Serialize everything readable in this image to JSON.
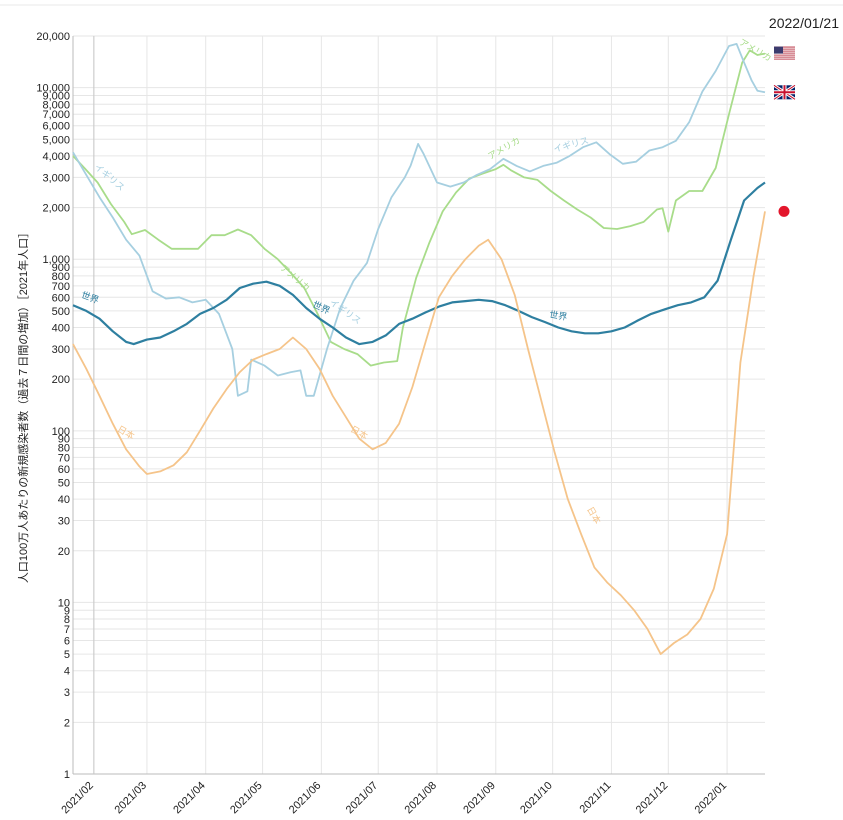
{
  "date_label": "2022/01/21",
  "chart_data": {
    "type": "line",
    "ylabel": "人口100万人あたりの新規感染者数（過去７日間の増加）［2021年人口］",
    "y_scale": "log",
    "ylim": [
      1,
      20000
    ],
    "y_ticks": [
      1,
      2,
      3,
      4,
      5,
      6,
      7,
      8,
      9,
      10,
      20,
      30,
      40,
      50,
      60,
      70,
      80,
      90,
      100,
      200,
      300,
      400,
      500,
      600,
      700,
      800,
      900,
      1000,
      2000,
      3000,
      4000,
      5000,
      6000,
      7000,
      8000,
      9000,
      10000,
      20000
    ],
    "y_tick_labels": [
      "1",
      "2",
      "3",
      "4",
      "5",
      "6",
      "7",
      "8",
      "9",
      "10",
      "20",
      "30",
      "40",
      "50",
      "60",
      "70",
      "80",
      "90",
      "100",
      "200",
      "300",
      "400",
      "500",
      "600",
      "700",
      "800",
      "900",
      "1,000",
      "2,000",
      "3,000",
      "4,000",
      "5,000",
      "6,000",
      "7,000",
      "8,000",
      "9,000",
      "10,000",
      "20,000"
    ],
    "xlim": [
      "2021-01-21",
      "2022-01-21"
    ],
    "x_ticks": [
      "2021-02-01",
      "2021-03-01",
      "2021-04-01",
      "2021-05-01",
      "2021-06-01",
      "2021-07-01",
      "2021-08-01",
      "2021-09-01",
      "2021-10-01",
      "2021-11-01",
      "2021-12-01",
      "2022-01-01"
    ],
    "x_tick_labels": [
      "2021/02",
      "2021/03",
      "2021/04",
      "2021/05",
      "2021/06",
      "2021/07",
      "2021/08",
      "2021/09",
      "2021/10",
      "2021/11",
      "2021/12",
      "2022/01"
    ],
    "series": [
      {
        "name": "アメリカ",
        "color": "#a8dc8a",
        "points": [
          [
            "2021-01-21",
            4000
          ],
          [
            "2021-01-27",
            3400
          ],
          [
            "2021-02-03",
            2800
          ],
          [
            "2021-02-10",
            2100
          ],
          [
            "2021-02-17",
            1650
          ],
          [
            "2021-02-21",
            1400
          ],
          [
            "2021-02-28",
            1480
          ],
          [
            "2021-03-07",
            1300
          ],
          [
            "2021-03-14",
            1150
          ],
          [
            "2021-03-21",
            1150
          ],
          [
            "2021-03-28",
            1150
          ],
          [
            "2021-04-04",
            1380
          ],
          [
            "2021-04-11",
            1380
          ],
          [
            "2021-04-18",
            1490
          ],
          [
            "2021-04-25",
            1380
          ],
          [
            "2021-05-02",
            1150
          ],
          [
            "2021-05-09",
            1000
          ],
          [
            "2021-05-16",
            830
          ],
          [
            "2021-05-23",
            680
          ],
          [
            "2021-05-30",
            480
          ],
          [
            "2021-06-06",
            330
          ],
          [
            "2021-06-13",
            300
          ],
          [
            "2021-06-20",
            280
          ],
          [
            "2021-06-27",
            240
          ],
          [
            "2021-07-04",
            250
          ],
          [
            "2021-07-11",
            255
          ],
          [
            "2021-07-14",
            400
          ],
          [
            "2021-07-21",
            780
          ],
          [
            "2021-07-28",
            1250
          ],
          [
            "2021-08-04",
            1900
          ],
          [
            "2021-08-11",
            2450
          ],
          [
            "2021-08-18",
            2950
          ],
          [
            "2021-08-25",
            3150
          ],
          [
            "2021-09-01",
            3350
          ],
          [
            "2021-09-05",
            3550
          ],
          [
            "2021-09-09",
            3300
          ],
          [
            "2021-09-16",
            3000
          ],
          [
            "2021-09-23",
            2900
          ],
          [
            "2021-09-30",
            2500
          ],
          [
            "2021-10-07",
            2200
          ],
          [
            "2021-10-14",
            1950
          ],
          [
            "2021-10-21",
            1750
          ],
          [
            "2021-10-28",
            1520
          ],
          [
            "2021-11-04",
            1500
          ],
          [
            "2021-11-11",
            1560
          ],
          [
            "2021-11-18",
            1650
          ],
          [
            "2021-11-25",
            1950
          ],
          [
            "2021-11-28",
            1980
          ],
          [
            "2021-12-01",
            1450
          ],
          [
            "2021-12-05",
            2200
          ],
          [
            "2021-12-12",
            2500
          ],
          [
            "2021-12-19",
            2500
          ],
          [
            "2021-12-26",
            3400
          ],
          [
            "2022-01-02",
            7000
          ],
          [
            "2022-01-09",
            14000
          ],
          [
            "2022-01-13",
            16500
          ],
          [
            "2022-01-17",
            15500
          ],
          [
            "2022-01-21",
            15800
          ]
        ]
      },
      {
        "name": "イギリス",
        "color": "#a6cfe0",
        "points": [
          [
            "2021-01-21",
            4200
          ],
          [
            "2021-01-28",
            3100
          ],
          [
            "2021-02-04",
            2300
          ],
          [
            "2021-02-11",
            1750
          ],
          [
            "2021-02-18",
            1300
          ],
          [
            "2021-02-25",
            1050
          ],
          [
            "2021-03-04",
            650
          ],
          [
            "2021-03-11",
            590
          ],
          [
            "2021-03-18",
            600
          ],
          [
            "2021-03-25",
            560
          ],
          [
            "2021-04-01",
            580
          ],
          [
            "2021-04-08",
            480
          ],
          [
            "2021-04-15",
            300
          ],
          [
            "2021-04-18",
            160
          ],
          [
            "2021-04-23",
            170
          ],
          [
            "2021-04-25",
            260
          ],
          [
            "2021-05-02",
            240
          ],
          [
            "2021-05-09",
            210
          ],
          [
            "2021-05-16",
            220
          ],
          [
            "2021-05-21",
            225
          ],
          [
            "2021-05-24",
            160
          ],
          [
            "2021-05-28",
            160
          ],
          [
            "2021-06-04",
            300
          ],
          [
            "2021-06-11",
            520
          ],
          [
            "2021-06-18",
            750
          ],
          [
            "2021-06-25",
            950
          ],
          [
            "2021-07-01",
            1500
          ],
          [
            "2021-07-08",
            2300
          ],
          [
            "2021-07-15",
            3000
          ],
          [
            "2021-07-18",
            3500
          ],
          [
            "2021-07-22",
            4700
          ],
          [
            "2021-07-25",
            4100
          ],
          [
            "2021-08-01",
            2800
          ],
          [
            "2021-08-08",
            2650
          ],
          [
            "2021-08-15",
            2800
          ],
          [
            "2021-08-22",
            3100
          ],
          [
            "2021-08-29",
            3350
          ],
          [
            "2021-09-05",
            3850
          ],
          [
            "2021-09-12",
            3500
          ],
          [
            "2021-09-19",
            3250
          ],
          [
            "2021-09-26",
            3500
          ],
          [
            "2021-10-03",
            3650
          ],
          [
            "2021-10-10",
            4000
          ],
          [
            "2021-10-17",
            4500
          ],
          [
            "2021-10-24",
            4800
          ],
          [
            "2021-10-31",
            4100
          ],
          [
            "2021-11-07",
            3600
          ],
          [
            "2021-11-14",
            3700
          ],
          [
            "2021-11-21",
            4300
          ],
          [
            "2021-11-28",
            4500
          ],
          [
            "2021-12-05",
            4900
          ],
          [
            "2021-12-12",
            6300
          ],
          [
            "2021-12-19",
            9500
          ],
          [
            "2021-12-26",
            12500
          ],
          [
            "2022-01-02",
            17500
          ],
          [
            "2022-01-06",
            18000
          ],
          [
            "2022-01-10",
            14000
          ],
          [
            "2022-01-14",
            11000
          ],
          [
            "2022-01-17",
            9600
          ],
          [
            "2022-01-21",
            9400
          ]
        ]
      },
      {
        "name": "世界",
        "color": "#2e7fa0",
        "points": [
          [
            "2021-01-21",
            540
          ],
          [
            "2021-01-28",
            500
          ],
          [
            "2021-02-04",
            450
          ],
          [
            "2021-02-11",
            380
          ],
          [
            "2021-02-18",
            330
          ],
          [
            "2021-02-22",
            320
          ],
          [
            "2021-03-01",
            340
          ],
          [
            "2021-03-08",
            350
          ],
          [
            "2021-03-15",
            380
          ],
          [
            "2021-03-22",
            420
          ],
          [
            "2021-03-29",
            480
          ],
          [
            "2021-04-05",
            520
          ],
          [
            "2021-04-12",
            580
          ],
          [
            "2021-04-19",
            680
          ],
          [
            "2021-04-26",
            720
          ],
          [
            "2021-05-03",
            740
          ],
          [
            "2021-05-10",
            700
          ],
          [
            "2021-05-17",
            620
          ],
          [
            "2021-05-24",
            520
          ],
          [
            "2021-05-31",
            450
          ],
          [
            "2021-06-07",
            400
          ],
          [
            "2021-06-14",
            350
          ],
          [
            "2021-06-21",
            320
          ],
          [
            "2021-06-28",
            330
          ],
          [
            "2021-07-05",
            360
          ],
          [
            "2021-07-12",
            420
          ],
          [
            "2021-07-19",
            450
          ],
          [
            "2021-07-26",
            490
          ],
          [
            "2021-08-02",
            530
          ],
          [
            "2021-08-09",
            560
          ],
          [
            "2021-08-16",
            570
          ],
          [
            "2021-08-23",
            580
          ],
          [
            "2021-08-30",
            570
          ],
          [
            "2021-09-06",
            540
          ],
          [
            "2021-09-13",
            500
          ],
          [
            "2021-09-20",
            460
          ],
          [
            "2021-09-27",
            430
          ],
          [
            "2021-10-04",
            400
          ],
          [
            "2021-10-11",
            380
          ],
          [
            "2021-10-18",
            370
          ],
          [
            "2021-10-25",
            370
          ],
          [
            "2021-11-01",
            380
          ],
          [
            "2021-11-08",
            400
          ],
          [
            "2021-11-15",
            440
          ],
          [
            "2021-11-22",
            480
          ],
          [
            "2021-11-29",
            510
          ],
          [
            "2021-12-06",
            540
          ],
          [
            "2021-12-13",
            560
          ],
          [
            "2021-12-20",
            600
          ],
          [
            "2021-12-27",
            750
          ],
          [
            "2022-01-03",
            1300
          ],
          [
            "2022-01-10",
            2200
          ],
          [
            "2022-01-17",
            2600
          ],
          [
            "2022-01-21",
            2800
          ]
        ]
      },
      {
        "name": "日本",
        "color": "#f5c48a",
        "points": [
          [
            "2021-01-21",
            320
          ],
          [
            "2021-01-28",
            230
          ],
          [
            "2021-02-04",
            160
          ],
          [
            "2021-02-11",
            110
          ],
          [
            "2021-02-18",
            78
          ],
          [
            "2021-02-25",
            62
          ],
          [
            "2021-03-01",
            56
          ],
          [
            "2021-03-08",
            58
          ],
          [
            "2021-03-15",
            63
          ],
          [
            "2021-03-22",
            75
          ],
          [
            "2021-03-29",
            100
          ],
          [
            "2021-04-05",
            135
          ],
          [
            "2021-04-12",
            175
          ],
          [
            "2021-04-19",
            220
          ],
          [
            "2021-04-26",
            260
          ],
          [
            "2021-05-03",
            280
          ],
          [
            "2021-05-10",
            300
          ],
          [
            "2021-05-17",
            350
          ],
          [
            "2021-05-24",
            300
          ],
          [
            "2021-05-31",
            230
          ],
          [
            "2021-06-07",
            160
          ],
          [
            "2021-06-14",
            120
          ],
          [
            "2021-06-21",
            90
          ],
          [
            "2021-06-28",
            78
          ],
          [
            "2021-07-05",
            85
          ],
          [
            "2021-07-12",
            110
          ],
          [
            "2021-07-19",
            180
          ],
          [
            "2021-07-26",
            330
          ],
          [
            "2021-08-02",
            600
          ],
          [
            "2021-08-09",
            800
          ],
          [
            "2021-08-16",
            1000
          ],
          [
            "2021-08-23",
            1200
          ],
          [
            "2021-08-28",
            1300
          ],
          [
            "2021-09-04",
            1000
          ],
          [
            "2021-09-11",
            620
          ],
          [
            "2021-09-18",
            300
          ],
          [
            "2021-09-25",
            150
          ],
          [
            "2021-10-02",
            75
          ],
          [
            "2021-10-09",
            40
          ],
          [
            "2021-10-16",
            25
          ],
          [
            "2021-10-23",
            16
          ],
          [
            "2021-10-30",
            13
          ],
          [
            "2021-11-06",
            11
          ],
          [
            "2021-11-13",
            9
          ],
          [
            "2021-11-20",
            7
          ],
          [
            "2021-11-27",
            5
          ],
          [
            "2021-12-04",
            5.8
          ],
          [
            "2021-12-11",
            6.5
          ],
          [
            "2021-12-18",
            8
          ],
          [
            "2021-12-25",
            12
          ],
          [
            "2022-01-01",
            25
          ],
          [
            "2022-01-08",
            250
          ],
          [
            "2022-01-15",
            800
          ],
          [
            "2022-01-21",
            1900
          ]
        ]
      }
    ],
    "series_labels": [
      {
        "series": "アメリカ",
        "text": "アメリカ",
        "date": "2022-01-07",
        "value": 18000,
        "angle": 30
      },
      {
        "series": "アメリカ",
        "text": "アメリカ",
        "date": "2021-05-10",
        "value": 880,
        "angle": 40
      },
      {
        "series": "アメリカ",
        "text": "アメリカ",
        "date": "2021-08-29",
        "value": 3800,
        "angle": -30
      },
      {
        "series": "イギリス",
        "text": "イギリス",
        "date": "2021-02-01",
        "value": 3400,
        "angle": 40
      },
      {
        "series": "イギリス",
        "text": "イギリス",
        "date": "2021-06-05",
        "value": 550,
        "angle": 35
      },
      {
        "series": "イギリス",
        "text": "イギリス",
        "date": "2021-10-02",
        "value": 4200,
        "angle": -15
      },
      {
        "series": "世界",
        "text": "世界",
        "date": "2021-01-25",
        "value": 600,
        "angle": 20
      },
      {
        "series": "世界",
        "text": "世界",
        "date": "2021-05-27",
        "value": 530,
        "angle": 25
      },
      {
        "series": "世界",
        "text": "世界",
        "date": "2021-09-29",
        "value": 460,
        "angle": 10
      },
      {
        "series": "日本",
        "text": "日本",
        "date": "2021-02-13",
        "value": 100,
        "angle": 30
      },
      {
        "series": "日本",
        "text": "日本",
        "date": "2021-06-16",
        "value": 100,
        "angle": 30
      },
      {
        "series": "日本",
        "text": "日本",
        "date": "2021-10-19",
        "value": 35,
        "angle": 60
      }
    ],
    "current_point": {
      "color": "#e3162c",
      "value": 1900
    },
    "flags": [
      {
        "name": "us-flag",
        "value": 15800
      },
      {
        "name": "uk-flag",
        "value": 9400
      }
    ]
  }
}
